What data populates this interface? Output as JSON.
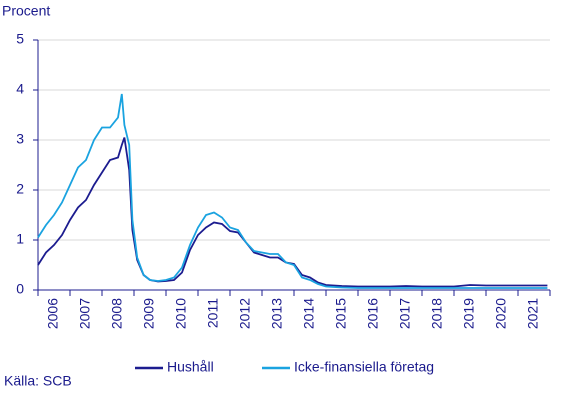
{
  "chart_data": {
    "type": "line",
    "y_label": "Procent",
    "source": "Källa: SCB",
    "x": [
      2006,
      2006.25,
      2006.5,
      2006.75,
      2007,
      2007.25,
      2007.5,
      2007.75,
      2008,
      2008.25,
      2008.5,
      2008.62,
      2008.7,
      2008.85,
      2008.95,
      2009.1,
      2009.3,
      2009.5,
      2009.75,
      2010,
      2010.25,
      2010.5,
      2010.75,
      2011,
      2011.25,
      2011.5,
      2011.75,
      2012,
      2012.25,
      2012.5,
      2012.75,
      2013,
      2013.25,
      2013.5,
      2013.75,
      2014,
      2014.25,
      2014.5,
      2014.75,
      2015,
      2015.5,
      2016,
      2016.5,
      2017,
      2017.5,
      2018,
      2018.5,
      2019,
      2019.5,
      2020,
      2020.5,
      2021,
      2021.5,
      2021.92
    ],
    "series": [
      {
        "name": "Hushåll",
        "color": "#1c1c8f",
        "values": [
          0.5,
          0.75,
          0.9,
          1.1,
          1.4,
          1.65,
          1.8,
          2.1,
          2.35,
          2.6,
          2.65,
          2.9,
          3.05,
          2.4,
          1.2,
          0.6,
          0.3,
          0.2,
          0.17,
          0.18,
          0.2,
          0.35,
          0.8,
          1.1,
          1.25,
          1.35,
          1.32,
          1.18,
          1.15,
          0.95,
          0.75,
          0.7,
          0.65,
          0.65,
          0.55,
          0.52,
          0.3,
          0.25,
          0.15,
          0.1,
          0.08,
          0.07,
          0.07,
          0.07,
          0.08,
          0.07,
          0.07,
          0.07,
          0.1,
          0.09,
          0.09,
          0.09,
          0.09,
          0.09
        ]
      },
      {
        "name": "Icke-finansiella företag",
        "color": "#1aa3e0",
        "values": [
          1.05,
          1.3,
          1.5,
          1.75,
          2.1,
          2.45,
          2.6,
          3.0,
          3.25,
          3.25,
          3.45,
          3.92,
          3.3,
          2.9,
          1.4,
          0.65,
          0.3,
          0.2,
          0.18,
          0.2,
          0.25,
          0.45,
          0.9,
          1.25,
          1.5,
          1.55,
          1.45,
          1.25,
          1.2,
          0.95,
          0.78,
          0.75,
          0.72,
          0.72,
          0.55,
          0.5,
          0.25,
          0.2,
          0.12,
          0.07,
          0.05,
          0.04,
          0.04,
          0.04,
          0.04,
          0.04,
          0.04,
          0.04,
          0.04,
          0.04,
          0.04,
          0.04,
          0.04,
          0.04
        ]
      }
    ],
    "xlim": [
      2006,
      2022
    ],
    "xticks": [
      {
        "value": 2006.5,
        "label": "2006"
      },
      {
        "value": 2007.5,
        "label": "2007"
      },
      {
        "value": 2008.5,
        "label": "2008"
      },
      {
        "value": 2009.5,
        "label": "2009"
      },
      {
        "value": 2010.5,
        "label": "2010"
      },
      {
        "value": 2011.5,
        "label": "2011"
      },
      {
        "value": 2012.5,
        "label": "2012"
      },
      {
        "value": 2013.5,
        "label": "2013"
      },
      {
        "value": 2014.5,
        "label": "2014"
      },
      {
        "value": 2015.5,
        "label": "2015"
      },
      {
        "value": 2016.5,
        "label": "2016"
      },
      {
        "value": 2017.5,
        "label": "2017"
      },
      {
        "value": 2018.5,
        "label": "2018"
      },
      {
        "value": 2019.5,
        "label": "2019"
      },
      {
        "value": 2020.5,
        "label": "2020"
      },
      {
        "value": 2021.5,
        "label": "2021"
      }
    ],
    "ylim": [
      0,
      5
    ],
    "yticks": [
      0,
      1,
      2,
      3,
      4,
      5
    ],
    "grid": true
  }
}
